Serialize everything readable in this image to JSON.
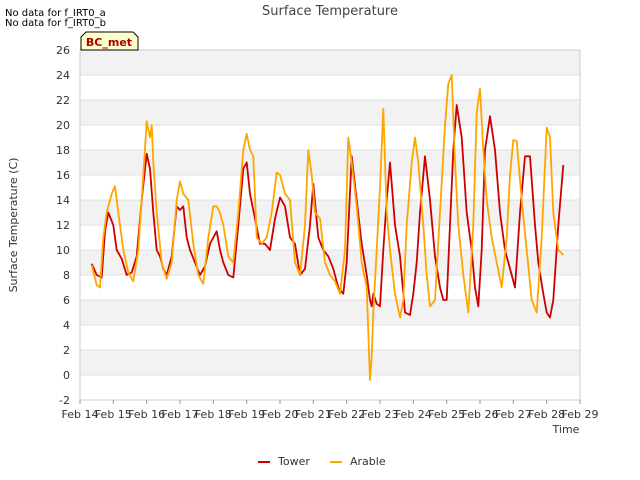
{
  "notes": [
    "No data for f_IRT0_a",
    "No data for f_IRT0_b"
  ],
  "badge": "BC_met",
  "chart_data": {
    "type": "line",
    "title": "Surface Temperature",
    "xlabel": "Time",
    "ylabel": "Surface Temperature (C)",
    "ylim": [
      -2,
      26
    ],
    "yticks": [
      -2,
      0,
      2,
      4,
      6,
      8,
      10,
      12,
      14,
      16,
      18,
      20,
      22,
      24,
      26
    ],
    "xlim": [
      14,
      29
    ],
    "xticks": [
      14,
      15,
      16,
      17,
      18,
      19,
      20,
      21,
      22,
      23,
      24,
      25,
      26,
      27,
      28,
      29
    ],
    "xtick_labels": [
      "Feb 14",
      "Feb 15",
      "Feb 16",
      "Feb 17",
      "Feb 18",
      "Feb 19",
      "Feb 20",
      "Feb 21",
      "Feb 22",
      "Feb 23",
      "Feb 24",
      "Feb 25",
      "Feb 26",
      "Feb 27",
      "Feb 28",
      "Feb 29"
    ],
    "grid": "horizontal bands",
    "legend_position": "bottom-center",
    "series": [
      {
        "name": "Tower",
        "color": "#cc0000",
        "x": [
          14.35,
          14.5,
          14.65,
          14.75,
          14.85,
          15.0,
          15.1,
          15.25,
          15.4,
          15.55,
          15.7,
          15.85,
          16.0,
          16.1,
          16.2,
          16.3,
          16.4,
          16.5,
          16.6,
          16.75,
          16.9,
          17.0,
          17.1,
          17.2,
          17.3,
          17.45,
          17.6,
          17.75,
          17.9,
          18.0,
          18.1,
          18.2,
          18.3,
          18.45,
          18.6,
          18.75,
          18.9,
          19.0,
          19.1,
          19.25,
          19.4,
          19.55,
          19.7,
          19.85,
          20.0,
          20.15,
          20.3,
          20.45,
          20.6,
          20.75,
          20.9,
          21.0,
          21.15,
          21.3,
          21.45,
          21.6,
          21.75,
          21.9,
          22.0,
          22.15,
          22.3,
          22.45,
          22.6,
          22.7,
          22.75,
          22.8,
          22.9,
          23.0,
          23.1,
          23.2,
          23.3,
          23.45,
          23.6,
          23.75,
          23.9,
          24.0,
          24.1,
          24.2,
          24.35,
          24.5,
          24.65,
          24.8,
          24.9,
          25.0,
          25.1,
          25.2,
          25.3,
          25.45,
          25.6,
          25.75,
          25.85,
          25.95,
          26.05,
          26.15,
          26.3,
          26.45,
          26.6,
          26.75,
          26.85,
          26.95,
          27.05,
          27.2,
          27.35,
          27.5,
          27.65,
          27.75,
          27.9,
          28.0,
          28.1,
          28.2,
          28.35,
          28.5
        ],
        "y": [
          8.9,
          8.0,
          7.8,
          11.5,
          13.0,
          12.0,
          10.0,
          9.3,
          8.0,
          8.2,
          9.5,
          14.0,
          17.7,
          16.5,
          13.0,
          10.0,
          9.5,
          8.5,
          8.0,
          9.5,
          13.5,
          13.2,
          13.5,
          11.0,
          10.0,
          9.0,
          8.0,
          8.7,
          10.5,
          11.0,
          11.5,
          10.0,
          9.0,
          8.0,
          7.8,
          12.0,
          16.5,
          17.0,
          14.5,
          12.5,
          10.5,
          10.5,
          10.0,
          12.5,
          14.2,
          13.5,
          11.0,
          10.5,
          8.0,
          8.5,
          12.0,
          15.3,
          11.0,
          10.0,
          9.5,
          8.5,
          7.0,
          6.5,
          9.0,
          17.5,
          14.0,
          10.5,
          8.0,
          6.0,
          5.5,
          6.5,
          5.7,
          5.5,
          10.0,
          14.0,
          17.0,
          12.0,
          9.5,
          5.0,
          4.8,
          6.5,
          9.0,
          13.0,
          17.5,
          14.0,
          9.5,
          7.0,
          6.0,
          6.0,
          12.0,
          18.0,
          21.6,
          19.0,
          13.0,
          10.0,
          7.0,
          5.5,
          10.0,
          18.0,
          20.7,
          18.0,
          13.0,
          10.0,
          9.0,
          8.0,
          7.0,
          13.0,
          17.5,
          17.5,
          12.0,
          9.0,
          6.5,
          5.0,
          4.6,
          6.0,
          12.0,
          16.8
        ]
      },
      {
        "name": "Arable",
        "color": "#ffa500",
        "x": [
          14.35,
          14.5,
          14.6,
          14.7,
          14.8,
          14.95,
          15.05,
          15.15,
          15.3,
          15.45,
          15.6,
          15.75,
          15.9,
          16.0,
          16.1,
          16.15,
          16.2,
          16.3,
          16.45,
          16.6,
          16.75,
          16.9,
          17.0,
          17.1,
          17.25,
          17.4,
          17.55,
          17.7,
          17.85,
          18.0,
          18.1,
          18.2,
          18.3,
          18.45,
          18.6,
          18.75,
          18.9,
          19.0,
          19.1,
          19.2,
          19.3,
          19.45,
          19.6,
          19.75,
          19.9,
          20.0,
          20.15,
          20.3,
          20.45,
          20.6,
          20.75,
          20.85,
          20.95,
          21.05,
          21.2,
          21.35,
          21.5,
          21.65,
          21.8,
          21.95,
          22.05,
          22.15,
          22.3,
          22.45,
          22.6,
          22.7,
          22.75,
          22.8,
          22.9,
          23.0,
          23.1,
          23.2,
          23.3,
          23.45,
          23.6,
          23.7,
          23.8,
          23.95,
          24.05,
          24.15,
          24.3,
          24.4,
          24.5,
          24.65,
          24.8,
          24.95,
          25.05,
          25.15,
          25.25,
          25.35,
          25.5,
          25.65,
          25.8,
          25.9,
          26.0,
          26.1,
          26.2,
          26.35,
          26.5,
          26.65,
          26.8,
          26.9,
          27.0,
          27.1,
          27.25,
          27.4,
          27.55,
          27.7,
          27.85,
          28.0,
          28.1,
          28.2,
          28.35,
          28.5
        ],
        "y": [
          8.8,
          7.2,
          7.0,
          11.0,
          13.0,
          14.5,
          15.1,
          13.0,
          10.0,
          8.2,
          7.5,
          10.0,
          16.0,
          20.3,
          19.0,
          20.0,
          17.0,
          13.0,
          9.0,
          7.7,
          9.0,
          14.0,
          15.5,
          14.5,
          14.0,
          10.5,
          8.0,
          7.3,
          11.0,
          13.5,
          13.5,
          13.0,
          12.0,
          9.5,
          9.0,
          13.0,
          18.0,
          19.3,
          18.0,
          17.5,
          11.0,
          10.5,
          11.0,
          13.0,
          16.2,
          16.0,
          14.5,
          14.0,
          9.0,
          8.0,
          12.0,
          18.0,
          16.0,
          13.0,
          12.5,
          9.0,
          8.0,
          7.5,
          6.5,
          10.0,
          19.0,
          17.0,
          13.5,
          9.0,
          7.0,
          -0.4,
          1.5,
          5.0,
          10.0,
          15.0,
          21.3,
          13.0,
          10.0,
          6.5,
          4.6,
          6.0,
          12.0,
          17.0,
          19.0,
          17.0,
          12.0,
          8.0,
          5.5,
          6.0,
          13.0,
          20.0,
          23.3,
          24.0,
          17.0,
          12.0,
          8.0,
          5.0,
          12.0,
          21.0,
          22.9,
          18.0,
          14.0,
          11.0,
          9.0,
          7.0,
          11.0,
          16.0,
          18.8,
          18.7,
          14.0,
          10.0,
          6.0,
          5.0,
          11.0,
          19.8,
          19.0,
          13.0,
          10.0,
          9.6
        ]
      }
    ]
  }
}
